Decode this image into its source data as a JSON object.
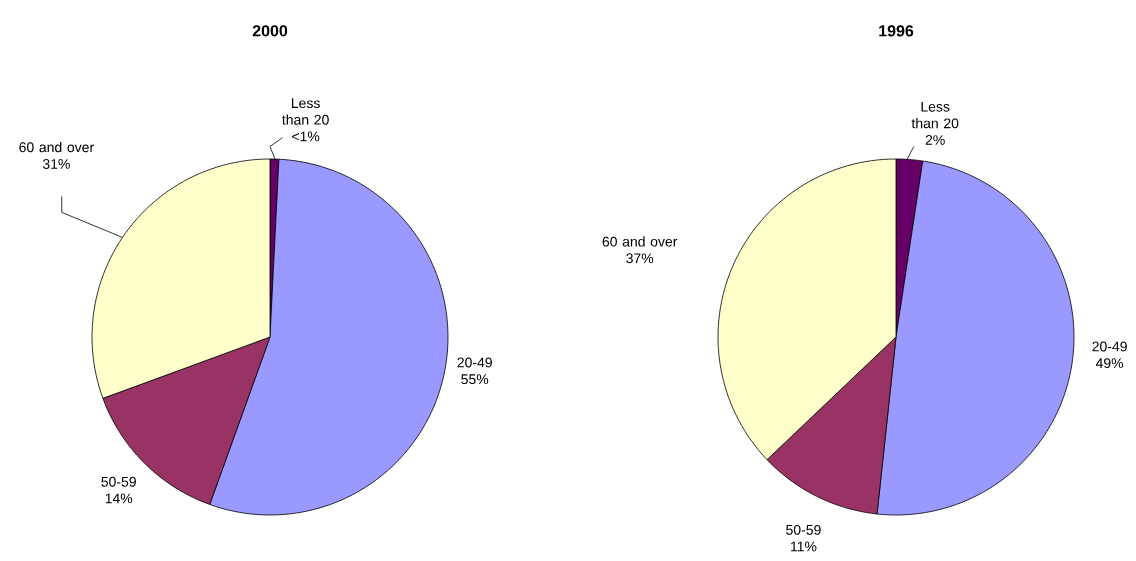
{
  "chart_data": [
    {
      "type": "pie",
      "title": "2000",
      "categories": [
        "Less than 20",
        "20-49",
        "50-59",
        "60 and over"
      ],
      "values": [
        0.8,
        54.7,
        13.9,
        30.6
      ],
      "value_labels": [
        "<1%",
        "55%",
        "14%",
        "31%"
      ],
      "colors": [
        "#660066",
        "#9999ff",
        "#993366",
        "#ffffcc"
      ]
    },
    {
      "type": "pie",
      "title": "1996",
      "categories": [
        "Less than 20",
        "20-49",
        "50-59",
        "60 and over"
      ],
      "values": [
        2.4,
        49.3,
        11.2,
        37.1
      ],
      "value_labels": [
        "2%",
        "49%",
        "11%",
        "37%"
      ],
      "colors": [
        "#660066",
        "#9999ff",
        "#993366",
        "#ffffcc"
      ]
    }
  ]
}
